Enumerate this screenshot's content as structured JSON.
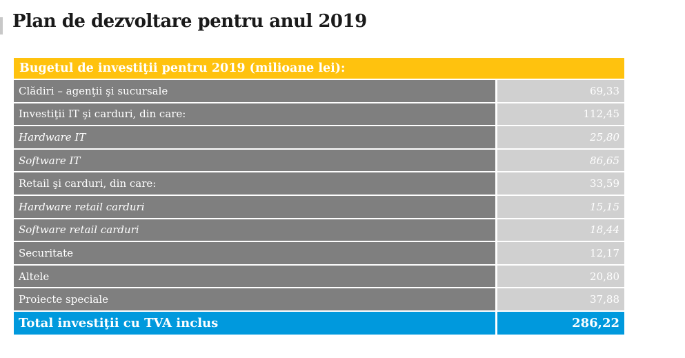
{
  "page": {
    "title": "Plan de dezvoltare pentru anul 2019"
  },
  "table": {
    "header": "Bugetul de investiţii pentru 2019 (milioane lei):",
    "rows": [
      {
        "label": "Clădiri – agenţii şi sucursale",
        "value": "69,33",
        "italic": false
      },
      {
        "label": "Investiţii IT şi carduri, din care:",
        "value": "112,45",
        "italic": false
      },
      {
        "label": "Hardware IT",
        "value": "25,80",
        "italic": true
      },
      {
        "label": "Software IT",
        "value": "86,65",
        "italic": true
      },
      {
        "label": "Retail şi carduri, din care:",
        "value": "33,59",
        "italic": false
      },
      {
        "label": "Hardware retail carduri",
        "value": "15,15",
        "italic": true
      },
      {
        "label": "Software retail carduri",
        "value": "18,44",
        "italic": true
      },
      {
        "label": "Securitate",
        "value": "12,17",
        "italic": false
      },
      {
        "label": "Altele",
        "value": "20,80",
        "italic": false
      },
      {
        "label": "Proiecte speciale",
        "value": "37,88",
        "italic": false
      }
    ],
    "total": {
      "label": "Total investiţii cu TVA inclus",
      "value": "286,22"
    }
  },
  "colors": {
    "header_accent": "#ffc20e",
    "label_cell": "#7f7f7f",
    "value_cell": "#d0d0d0",
    "total_accent": "#0099dd"
  }
}
